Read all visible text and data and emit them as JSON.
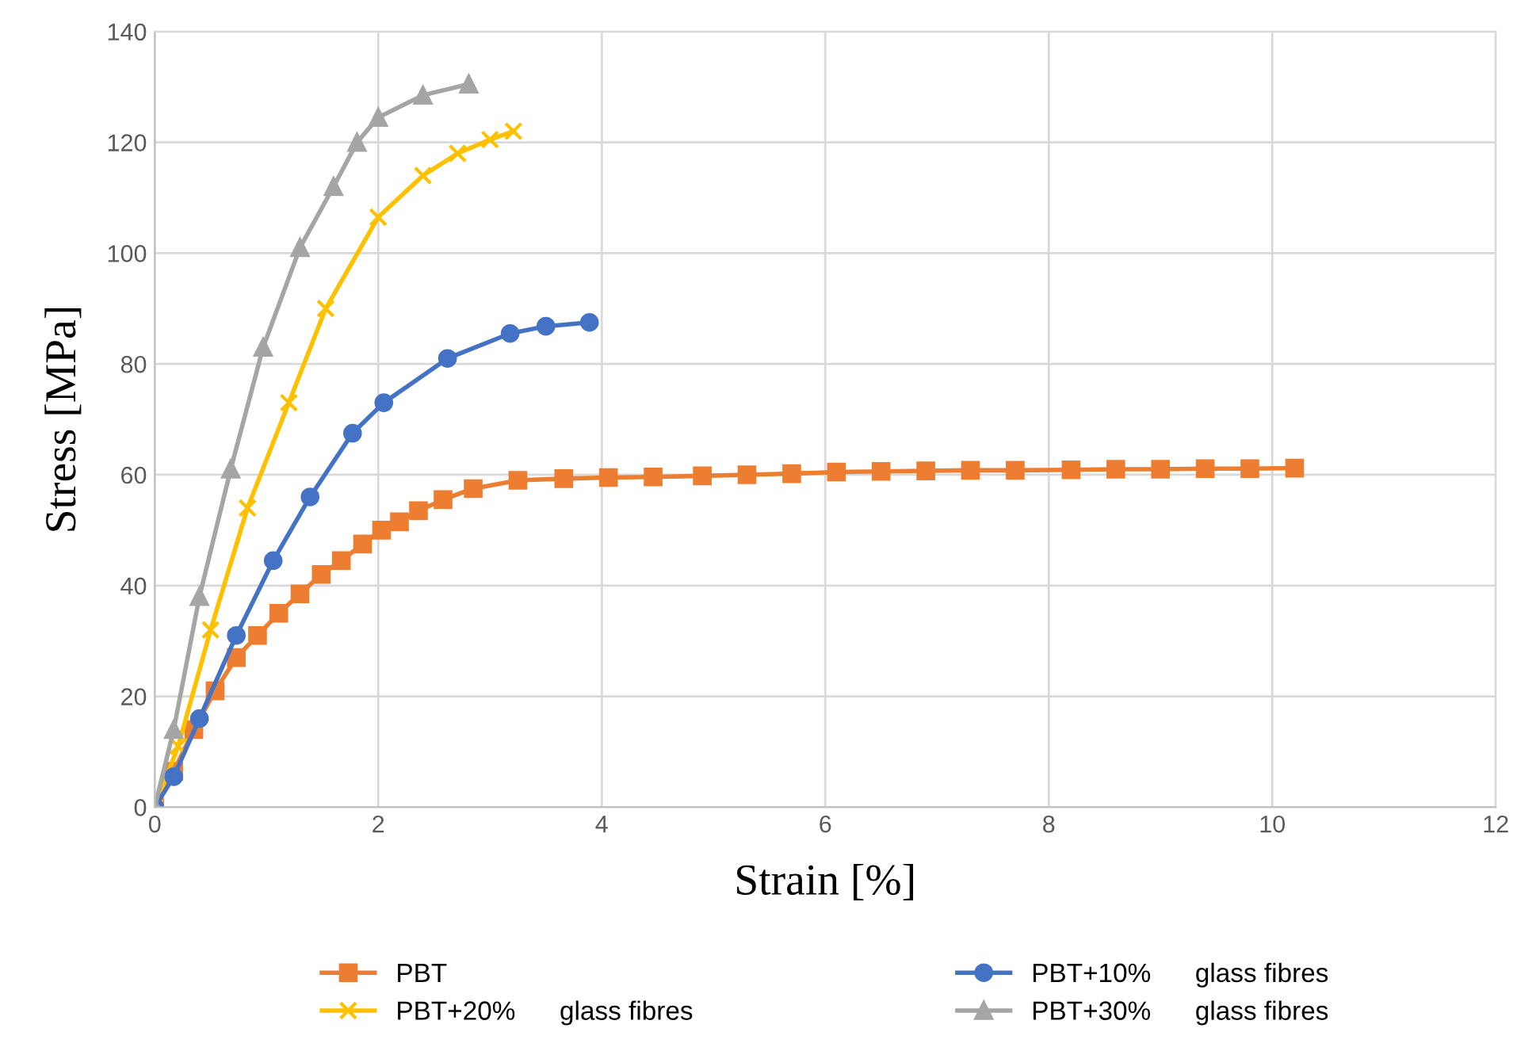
{
  "chart_data": {
    "type": "line",
    "xlabel": "Strain [%]",
    "ylabel": "Stress [MPa]",
    "xlim": [
      0,
      12
    ],
    "xticks": [
      0,
      2,
      4,
      6,
      8,
      10,
      12
    ],
    "ylim": [
      0,
      140
    ],
    "yticks": [
      0,
      20,
      40,
      60,
      80,
      100,
      120,
      140
    ],
    "grid": true,
    "legend": "bottom",
    "series": [
      {
        "name": "PBT",
        "color": "#ed7d31",
        "marker": "square",
        "x": [
          0,
          0.17,
          0.35,
          0.54,
          0.73,
          0.92,
          1.11,
          1.3,
          1.49,
          1.67,
          1.86,
          2.03,
          2.19,
          2.36,
          2.58,
          2.85,
          3.25,
          3.66,
          4.06,
          4.46,
          4.9,
          5.3,
          5.7,
          6.1,
          6.5,
          6.9,
          7.3,
          7.7,
          8.2,
          8.6,
          9.0,
          9.4,
          9.8,
          10.2
        ],
        "values": [
          0,
          6.5,
          14,
          21,
          27,
          31,
          35,
          38.5,
          42,
          44.5,
          47.5,
          50,
          51.5,
          53.5,
          55.5,
          57.5,
          59,
          59.3,
          59.5,
          59.6,
          59.8,
          60,
          60.2,
          60.5,
          60.6,
          60.7,
          60.8,
          60.8,
          60.9,
          61,
          61,
          61.1,
          61.1,
          61.2
        ]
      },
      {
        "name": "PBT+20%      glass fibres",
        "color": "#ffc000",
        "marker": "cross",
        "x": [
          0,
          0.21,
          0.5,
          0.83,
          1.2,
          1.53,
          2.0,
          2.4,
          2.71,
          3.0,
          3.21
        ],
        "values": [
          0,
          11,
          32,
          54,
          73,
          90,
          106.5,
          114,
          118,
          120.5,
          122
        ]
      },
      {
        "name": "PBT+10%      glass fibres",
        "color": "#4472c4",
        "marker": "circle",
        "x": [
          0,
          0.17,
          0.4,
          0.73,
          1.06,
          1.39,
          1.77,
          2.05,
          2.62,
          3.18,
          3.5,
          3.89
        ],
        "values": [
          0,
          5.5,
          16,
          31,
          44.5,
          56,
          67.5,
          73,
          81,
          85.5,
          86.8,
          87.5
        ]
      },
      {
        "name": "PBT+30%      glass fibres",
        "color": "#a5a5a5",
        "marker": "triangle",
        "x": [
          0,
          0.17,
          0.4,
          0.68,
          0.97,
          1.3,
          1.6,
          1.81,
          2.0,
          2.4,
          2.81
        ],
        "values": [
          0,
          14,
          38,
          61,
          83,
          101,
          112,
          120,
          124.5,
          128.5,
          130.5
        ]
      }
    ]
  }
}
